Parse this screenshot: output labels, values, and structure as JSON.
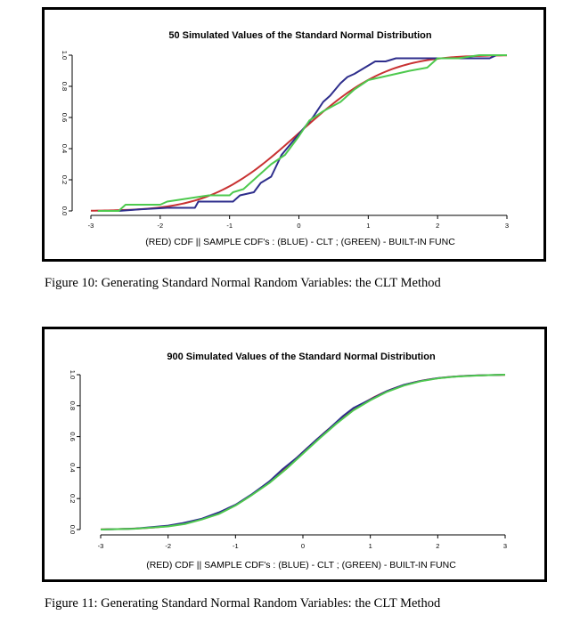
{
  "figures": [
    {
      "caption": "Figure 10: Generating Standard Normal Random Variables: the CLT Method",
      "chart_data": {
        "type": "line",
        "title": "50 Simulated Values of the Standard Normal Distribution",
        "xlabel": "(RED) CDF || SAMPLE CDF's : (BLUE) -  CLT ; (GREEN) - BUILT-IN FUNC",
        "ylabel": "",
        "xlim": [
          -3,
          3
        ],
        "ylim": [
          0,
          1
        ],
        "xticks": [
          -3,
          -2,
          -1,
          0,
          1,
          2,
          3
        ],
        "xtick_labels": [
          "-3",
          "-2",
          "-1",
          "0",
          "1",
          "2",
          "3"
        ],
        "yticks": [
          0,
          0.2,
          0.4,
          0.6,
          0.8,
          1.0
        ],
        "ytick_labels": [
          "0.0",
          "0.2",
          "0.4",
          "0.6",
          "0.8",
          "1.0"
        ],
        "series": [
          {
            "name": "CDF",
            "color": "#c83232",
            "kind": "normal_cdf",
            "x": [],
            "values": []
          },
          {
            "name": "CLT sample CDF",
            "color": "#2e2e8c",
            "x": [
              -2.9,
              -2.6,
              -2.3,
              -1.9,
              -1.5,
              -1.45,
              -0.95,
              -0.85,
              -0.65,
              -0.55,
              -0.4,
              -0.25,
              -0.1,
              0.05,
              0.2,
              0.35,
              0.45,
              0.6,
              0.7,
              0.8,
              0.95,
              1.1,
              1.25,
              1.4,
              1.6,
              1.8,
              2.0,
              2.3,
              2.55,
              2.75,
              2.85
            ],
            "values": [
              0.0,
              0.0,
              0.01,
              0.02,
              0.02,
              0.06,
              0.06,
              0.1,
              0.12,
              0.18,
              0.22,
              0.36,
              0.44,
              0.52,
              0.6,
              0.7,
              0.74,
              0.82,
              0.86,
              0.88,
              0.92,
              0.96,
              0.96,
              0.98,
              0.98,
              0.98,
              0.98,
              0.98,
              0.98,
              0.98,
              1.0
            ]
          },
          {
            "name": "Built-in sample CDF",
            "color": "#4ec94e",
            "x": [
              -2.9,
              -2.6,
              -2.5,
              -2.0,
              -1.9,
              -1.6,
              -1.3,
              -1.0,
              -0.95,
              -0.8,
              -0.6,
              -0.4,
              -0.2,
              0.0,
              0.15,
              0.35,
              0.6,
              0.8,
              1.0,
              1.2,
              1.4,
              1.6,
              1.85,
              2.0,
              2.3,
              2.6,
              3.0
            ],
            "values": [
              0.0,
              0.0,
              0.04,
              0.04,
              0.06,
              0.08,
              0.1,
              0.1,
              0.12,
              0.14,
              0.22,
              0.3,
              0.36,
              0.48,
              0.58,
              0.64,
              0.7,
              0.78,
              0.84,
              0.86,
              0.88,
              0.9,
              0.92,
              0.98,
              0.98,
              1.0,
              1.0
            ]
          }
        ]
      }
    },
    {
      "caption": "Figure 11: Generating Standard Normal Random Variables: the CLT Method",
      "chart_data": {
        "type": "line",
        "title": "900 Simulated Values of the Standard Normal Distribution",
        "xlabel": "(RED) CDF || SAMPLE CDF's : (BLUE) -  CLT ; (GREEN) - BUILT-IN FUNC",
        "ylabel": "",
        "xlim": [
          -3,
          3
        ],
        "ylim": [
          0,
          1
        ],
        "xticks": [
          -3,
          -2,
          -1,
          0,
          1,
          2,
          3
        ],
        "xtick_labels": [
          "-3",
          "-2",
          "-1",
          "0",
          "1",
          "2",
          "3"
        ],
        "yticks": [
          0,
          0.2,
          0.4,
          0.6,
          0.8,
          1.0
        ],
        "ytick_labels": [
          "0.0",
          "0.2",
          "0.4",
          "0.6",
          "0.8",
          "1.0"
        ],
        "series": [
          {
            "name": "CDF",
            "color": "#c83232",
            "kind": "normal_cdf",
            "x": [],
            "values": []
          },
          {
            "name": "CLT sample CDF",
            "color": "#2e2e8c",
            "x": [
              -3.0,
              -2.5,
              -2.0,
              -1.8,
              -1.5,
              -1.25,
              -1.0,
              -0.75,
              -0.5,
              -0.3,
              -0.1,
              0.0,
              0.2,
              0.4,
              0.6,
              0.75,
              1.0,
              1.25,
              1.5,
              1.75,
              2.0,
              2.25,
              2.5,
              2.75,
              3.0
            ],
            "values": [
              0.0,
              0.006,
              0.025,
              0.04,
              0.07,
              0.11,
              0.16,
              0.23,
              0.31,
              0.39,
              0.46,
              0.5,
              0.58,
              0.655,
              0.735,
              0.785,
              0.84,
              0.895,
              0.935,
              0.96,
              0.978,
              0.988,
              0.994,
              0.997,
              1.0
            ]
          },
          {
            "name": "Built-in sample CDF",
            "color": "#4ec94e",
            "x": [
              -3.0,
              -2.5,
              -2.0,
              -1.75,
              -1.5,
              -1.25,
              -1.0,
              -0.75,
              -0.5,
              -0.25,
              0.0,
              0.25,
              0.5,
              0.75,
              1.0,
              1.25,
              1.5,
              1.75,
              2.0,
              2.25,
              2.5,
              2.75,
              3.0
            ],
            "values": [
              0.0,
              0.005,
              0.02,
              0.036,
              0.065,
              0.1,
              0.155,
              0.225,
              0.3,
              0.39,
              0.49,
              0.59,
              0.685,
              0.77,
              0.835,
              0.89,
              0.93,
              0.958,
              0.976,
              0.987,
              0.993,
              0.997,
              1.0
            ]
          }
        ]
      }
    }
  ]
}
